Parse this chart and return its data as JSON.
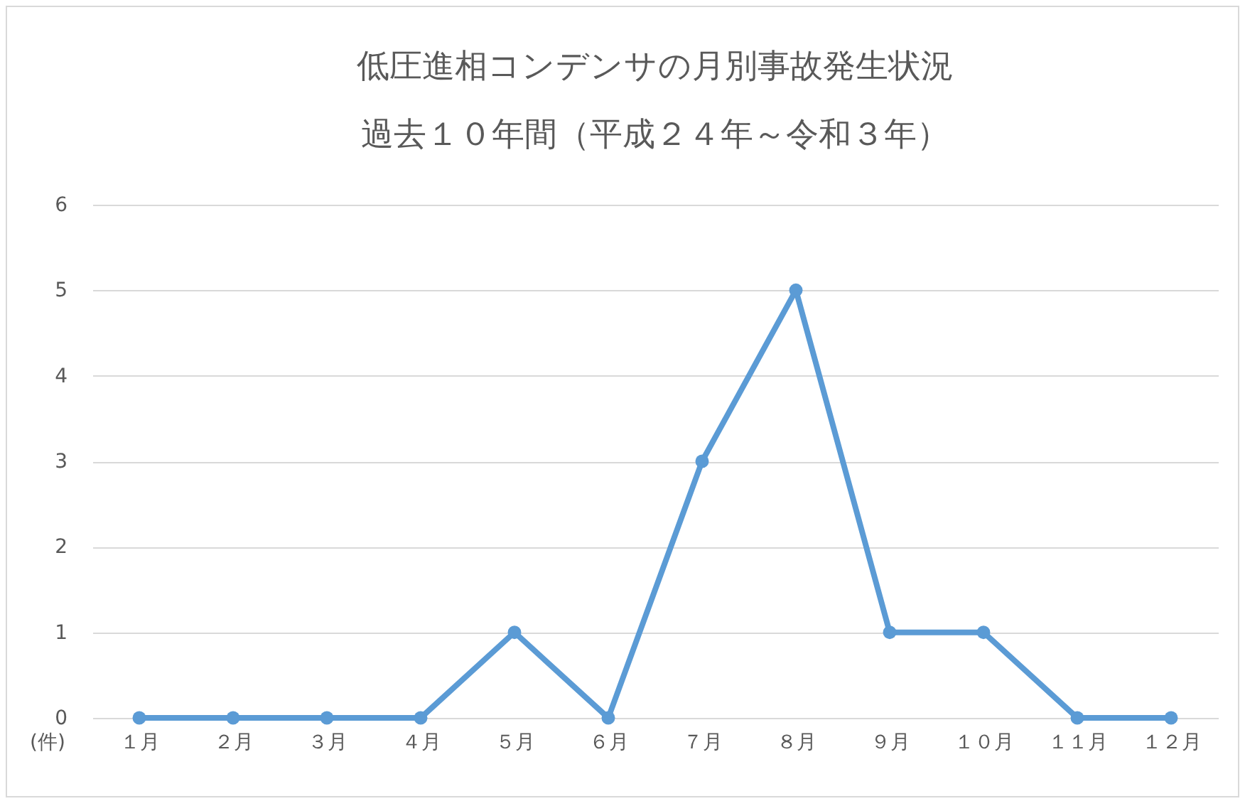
{
  "chart_data": {
    "type": "line",
    "title": [
      "低圧進相コンデンサの月別事故発生状況",
      "過去１０年間（平成２４年～令和３年）"
    ],
    "ylabel": "(件)",
    "categories": [
      "１月",
      "２月",
      "３月",
      "４月",
      "５月",
      "６月",
      "７月",
      "８月",
      "９月",
      "１０月",
      "１１月",
      "１２月"
    ],
    "series": [
      {
        "color": "#5b9bd5",
        "values": [
          0,
          0,
          0,
          0,
          1,
          0,
          3,
          5,
          1,
          1,
          0,
          0
        ]
      }
    ],
    "ylim": [
      0,
      6
    ],
    "yticks": [
      0,
      1,
      2,
      3,
      4,
      5,
      6
    ],
    "grid": "y",
    "legend": false,
    "marker": "circle",
    "line_style": "solid"
  }
}
